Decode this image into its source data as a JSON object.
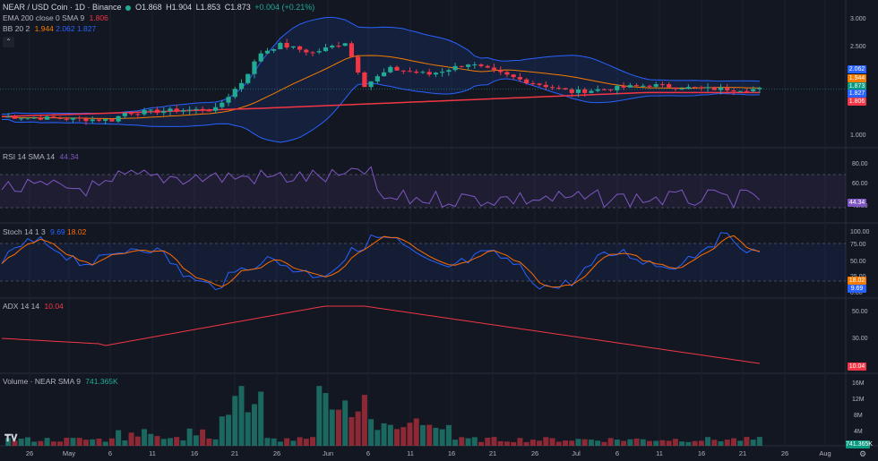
{
  "header": {
    "symbol": "NEAR / USD Coin · 1D · Binance",
    "ohlc": {
      "o": "O1.868",
      "h": "H1.904",
      "l": "L1.853",
      "c": "C1.873",
      "chg": "+0.004 (+0.21%)"
    }
  },
  "indicators": {
    "ema": {
      "label": "EMA 200 close 0 SMA 9",
      "value": "1.806"
    },
    "bb": {
      "label": "BB 20 2",
      "v1": "1.944",
      "v2": "2.062",
      "v3": "1.827"
    },
    "collapse_icon": "chevron-up-icon",
    "rsi": {
      "label": "RSI 14 SMA 14",
      "value": "44.34"
    },
    "stoch": {
      "label": "Stoch 14 1 3",
      "k": "9.69",
      "d": "18.02"
    },
    "adx": {
      "label": "ADX 14 14",
      "value": "10.04"
    },
    "volume": {
      "label": "Volume · NEAR SMA 9",
      "value": "741.365K"
    }
  },
  "price_axis": {
    "ticks": [
      "3.000",
      "2.500",
      "2.000",
      "1.500",
      "1.000"
    ],
    "tags": [
      {
        "text": "2.062",
        "color": "#2962ff"
      },
      {
        "text": "1.944",
        "color": "#f57c00"
      },
      {
        "text": "1.873",
        "color": "#089981"
      },
      {
        "text": "1.827",
        "color": "#2962ff"
      },
      {
        "text": "1.806",
        "color": "#f23645"
      }
    ]
  },
  "rsi_axis": {
    "ticks": [
      "80.00",
      "60.00",
      "40.00"
    ],
    "tag": "44.34"
  },
  "stoch_axis": {
    "ticks": [
      "100.00",
      "75.00",
      "50.00",
      "25.00",
      "0.00"
    ],
    "tags": [
      "18.02",
      "9.69"
    ]
  },
  "adx_axis": {
    "ticks": [
      "50.00",
      "30.00"
    ],
    "tag": "10.04"
  },
  "vol_axis": {
    "ticks": [
      "16M",
      "12M",
      "8M",
      "4M"
    ],
    "tag": "741.365K"
  },
  "time_axis": [
    "26",
    "May",
    "6",
    "11",
    "16",
    "21",
    "26",
    "Jun",
    "6",
    "11",
    "16",
    "21",
    "26",
    "Jul",
    "6",
    "11",
    "16",
    "21",
    "26",
    "Aug"
  ],
  "colors": {
    "up": "#22ab94",
    "down": "#f23645",
    "ema": "#f23645",
    "bb_basis": "#f57c00",
    "bb_band": "#2962ff",
    "rsi": "#7e57c2",
    "stoch_k": "#2962ff",
    "stoch_d": "#ff6d00",
    "adx": "#f23645"
  }
}
